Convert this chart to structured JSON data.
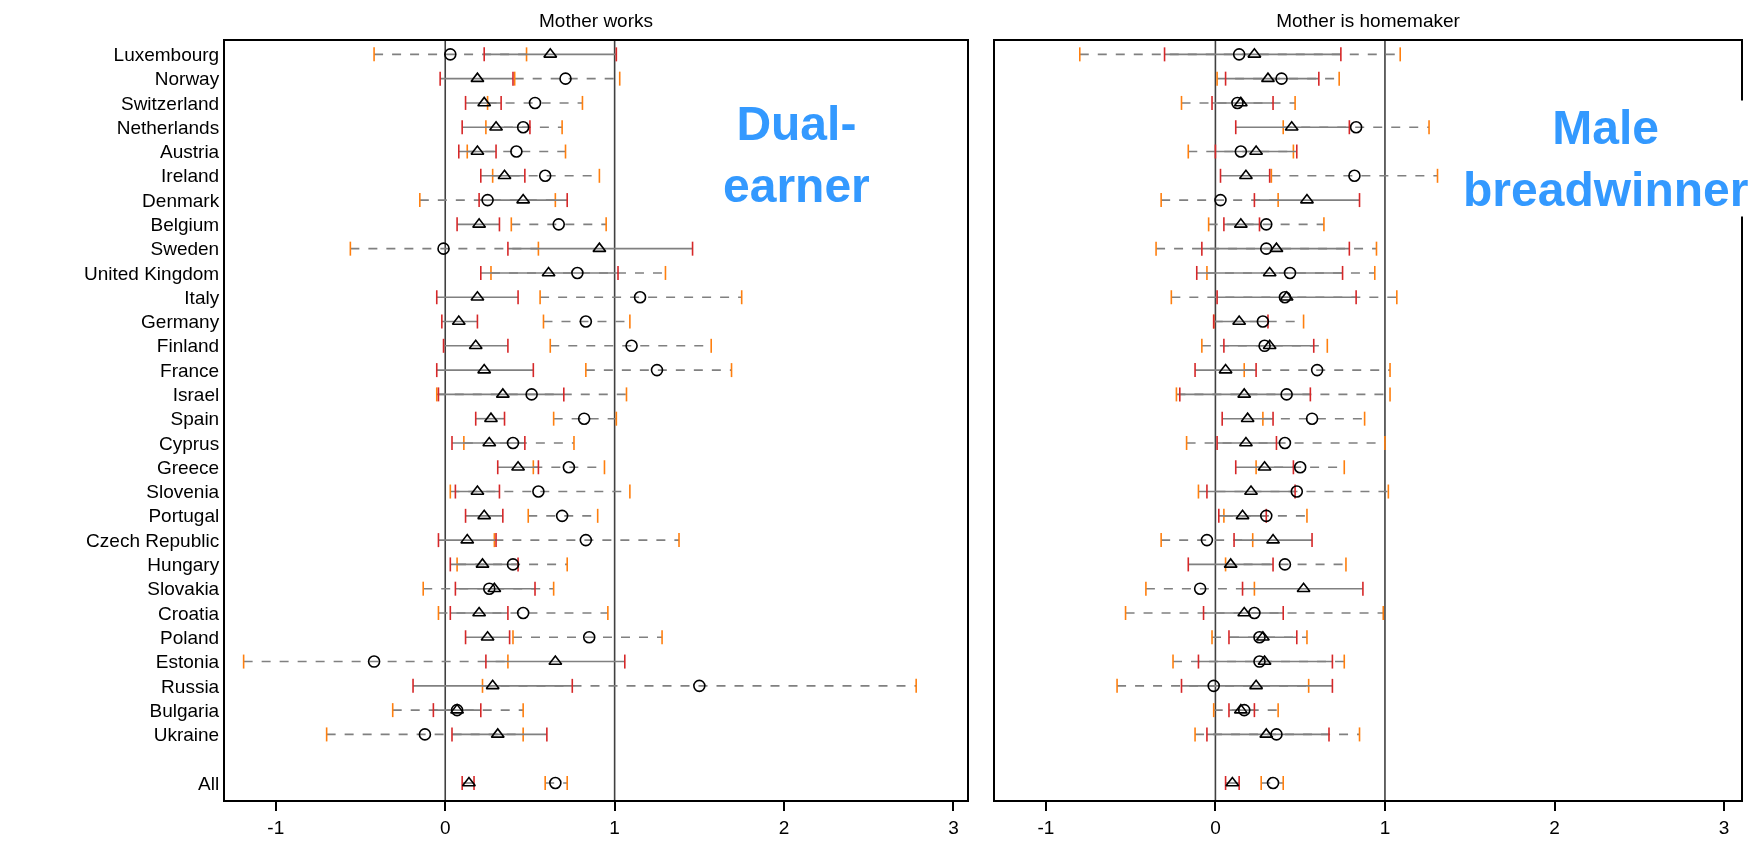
{
  "chart_data": [
    {
      "type": "scatter",
      "title": "Mother works",
      "orientation": "horizontal",
      "categories": [
        "Luxembourg",
        "Norway",
        "Switzerland",
        "Netherlands",
        "Austria",
        "Ireland",
        "Denmark",
        "Belgium",
        "Sweden",
        "United Kingdom",
        "Italy",
        "Germany",
        "Finland",
        "France",
        "Israel",
        "Spain",
        "Cyprus",
        "Greece",
        "Slovenia",
        "Portugal",
        "Czech Republic",
        "Hungary",
        "Slovakia",
        "Croatia",
        "Poland",
        "Estonia",
        "Russia",
        "Bulgaria",
        "Ukraine",
        null,
        "All"
      ],
      "xlim": [
        -1.3,
        3.08
      ],
      "xticks": [
        -1,
        0,
        1,
        2,
        3
      ],
      "grid": false,
      "ref_lines": [
        {
          "axis": "x",
          "value": 0,
          "color": "#404040"
        },
        {
          "axis": "x",
          "value": 1,
          "color": "#404040"
        }
      ],
      "annotations": [
        "Dual-\nearner"
      ],
      "series": [
        {
          "color": "#000000",
          "marker": "circle",
          "line_style": "dashed",
          "values": [
            0.03,
            0.71,
            0.53,
            0.46,
            0.42,
            0.59,
            0.25,
            0.67,
            -0.01,
            0.78,
            1.15,
            0.83,
            1.1,
            1.25,
            0.51,
            0.82,
            0.4,
            0.73,
            0.55,
            0.69,
            0.83,
            0.4,
            0.26,
            0.46,
            0.85,
            -0.42,
            1.5,
            0.07,
            -0.12,
            null,
            0.65
          ],
          "errors": [
            [
              -0.42,
              0.48
            ],
            [
              0.41,
              1.03
            ],
            [
              0.25,
              0.81
            ],
            [
              0.24,
              0.69
            ],
            [
              0.13,
              0.71
            ],
            [
              0.28,
              0.91
            ],
            [
              -0.15,
              0.65
            ],
            [
              0.39,
              0.95
            ],
            [
              -0.56,
              0.55
            ],
            [
              0.27,
              1.3
            ],
            [
              0.56,
              1.75
            ],
            [
              0.58,
              1.09
            ],
            [
              0.62,
              1.57
            ],
            [
              0.83,
              1.69
            ],
            [
              -0.05,
              1.07
            ],
            [
              0.64,
              1.01
            ],
            [
              0.11,
              0.76
            ],
            [
              0.52,
              0.94
            ],
            [
              0.03,
              1.09
            ],
            [
              0.49,
              0.9
            ],
            [
              0.29,
              1.38
            ],
            [
              0.07,
              0.72
            ],
            [
              -0.13,
              0.64
            ],
            [
              -0.04,
              0.96
            ],
            [
              0.4,
              1.28
            ],
            [
              -1.19,
              0.37
            ],
            [
              0.22,
              2.78
            ],
            [
              -0.31,
              0.46
            ],
            [
              -0.7,
              0.46
            ],
            null,
            [
              0.59,
              0.72
            ]
          ]
        },
        {
          "color": "#000000",
          "marker": "triangle",
          "line_style": "solid",
          "values": [
            0.62,
            0.19,
            0.23,
            0.3,
            0.19,
            0.35,
            0.46,
            0.2,
            0.91,
            0.61,
            0.19,
            0.08,
            0.18,
            0.23,
            0.34,
            0.27,
            0.26,
            0.43,
            0.19,
            0.23,
            0.13,
            0.22,
            0.29,
            0.2,
            0.25,
            0.65,
            0.28,
            0.07,
            0.31,
            null,
            0.14
          ],
          "errors": [
            [
              0.23,
              1.01
            ],
            [
              -0.03,
              0.4
            ],
            [
              0.12,
              0.33
            ],
            [
              0.1,
              0.5
            ],
            [
              0.08,
              0.3
            ],
            [
              0.21,
              0.47
            ],
            [
              0.2,
              0.72
            ],
            [
              0.07,
              0.32
            ],
            [
              0.37,
              1.46
            ],
            [
              0.21,
              1.02
            ],
            [
              -0.05,
              0.43
            ],
            [
              -0.02,
              0.19
            ],
            [
              -0.01,
              0.37
            ],
            [
              -0.05,
              0.52
            ],
            [
              -0.04,
              0.7
            ],
            [
              0.18,
              0.35
            ],
            [
              0.04,
              0.47
            ],
            [
              0.31,
              0.55
            ],
            [
              0.06,
              0.32
            ],
            [
              0.12,
              0.34
            ],
            [
              -0.04,
              0.3
            ],
            [
              0.03,
              0.43
            ],
            [
              0.06,
              0.53
            ],
            [
              0.03,
              0.37
            ],
            [
              0.12,
              0.38
            ],
            [
              0.24,
              1.06
            ],
            [
              -0.19,
              0.75
            ],
            [
              -0.07,
              0.21
            ],
            [
              0.04,
              0.6
            ],
            null,
            [
              0.1,
              0.17
            ]
          ]
        }
      ]
    },
    {
      "type": "scatter",
      "title": "Mother is homemaker",
      "orientation": "horizontal",
      "xlim": [
        -1.3,
        3.1
      ],
      "xticks": [
        -1,
        0,
        1,
        2,
        3
      ],
      "grid": false,
      "tick_labels": "x",
      "ref_lines": [
        {
          "axis": "x",
          "value": 0,
          "color": "#404040"
        },
        {
          "axis": "x",
          "value": 1,
          "color": "#404040"
        }
      ],
      "annotations": [
        "Male\nbreadwinner"
      ],
      "series": [
        {
          "color": "#000000",
          "marker": "circle",
          "line_style": "dashed",
          "values": [
            0.14,
            0.39,
            0.13,
            0.83,
            0.15,
            0.82,
            0.03,
            0.3,
            0.3,
            0.44,
            0.41,
            0.28,
            0.29,
            0.6,
            0.42,
            0.57,
            0.41,
            0.5,
            0.48,
            0.3,
            -0.05,
            0.41,
            -0.09,
            0.23,
            0.26,
            0.26,
            -0.01,
            0.17,
            0.36,
            null,
            0.34
          ],
          "errors": [
            [
              -0.8,
              1.09
            ],
            [
              0.01,
              0.73
            ],
            [
              -0.2,
              0.47
            ],
            [
              0.4,
              1.26
            ],
            [
              -0.16,
              0.46
            ],
            [
              0.33,
              1.31
            ],
            [
              -0.32,
              0.37
            ],
            [
              -0.04,
              0.64
            ],
            [
              -0.35,
              0.95
            ],
            [
              -0.05,
              0.94
            ],
            [
              -0.26,
              1.07
            ],
            [
              -0.01,
              0.52
            ],
            [
              -0.08,
              0.66
            ],
            [
              0.17,
              1.03
            ],
            [
              -0.23,
              1.03
            ],
            [
              0.28,
              0.88
            ],
            [
              -0.17,
              1.0
            ],
            [
              0.24,
              0.76
            ],
            [
              -0.1,
              1.02
            ],
            [
              0.05,
              0.54
            ],
            [
              -0.32,
              0.22
            ],
            [
              0.06,
              0.77
            ],
            [
              -0.41,
              0.23
            ],
            [
              -0.53,
              0.99
            ],
            [
              -0.02,
              0.54
            ],
            [
              -0.25,
              0.76
            ],
            [
              -0.58,
              0.55
            ],
            [
              -0.01,
              0.37
            ],
            [
              -0.12,
              0.85
            ],
            null,
            [
              0.27,
              0.4
            ]
          ]
        },
        {
          "color": "#000000",
          "marker": "triangle",
          "line_style": "solid",
          "values": [
            0.23,
            0.31,
            0.15,
            0.45,
            0.24,
            0.18,
            0.54,
            0.15,
            0.36,
            0.32,
            0.42,
            0.14,
            0.32,
            0.06,
            0.17,
            0.19,
            0.18,
            0.29,
            0.21,
            0.16,
            0.34,
            0.09,
            0.52,
            0.17,
            0.28,
            0.29,
            0.24,
            0.15,
            0.3,
            null,
            0.1
          ],
          "errors": [
            [
              -0.3,
              0.74
            ],
            [
              0.06,
              0.61
            ],
            [
              -0.02,
              0.34
            ],
            [
              0.12,
              0.79
            ],
            [
              0.0,
              0.48
            ],
            [
              0.03,
              0.32
            ],
            [
              0.23,
              0.85
            ],
            [
              0.05,
              0.26
            ],
            [
              -0.08,
              0.79
            ],
            [
              -0.11,
              0.75
            ],
            [
              0.01,
              0.83
            ],
            [
              -0.01,
              0.31
            ],
            [
              0.05,
              0.58
            ],
            [
              -0.12,
              0.24
            ],
            [
              -0.21,
              0.56
            ],
            [
              0.04,
              0.34
            ],
            [
              0.01,
              0.36
            ],
            [
              0.12,
              0.46
            ],
            [
              -0.05,
              0.47
            ],
            [
              0.02,
              0.3
            ],
            [
              0.11,
              0.57
            ],
            [
              -0.16,
              0.34
            ],
            [
              0.16,
              0.87
            ],
            [
              -0.07,
              0.4
            ],
            [
              0.08,
              0.48
            ],
            [
              -0.1,
              0.69
            ],
            [
              -0.2,
              0.69
            ],
            [
              0.08,
              0.23
            ],
            [
              -0.05,
              0.67
            ],
            null,
            [
              0.06,
              0.14
            ]
          ]
        }
      ]
    }
  ]
}
